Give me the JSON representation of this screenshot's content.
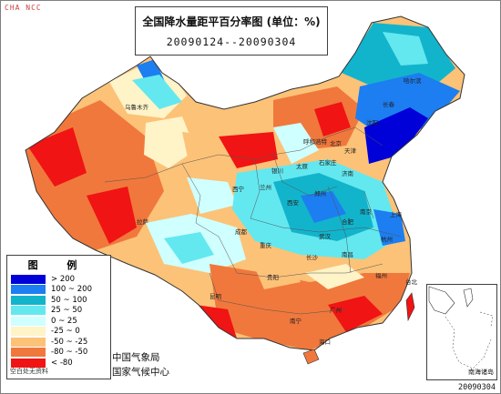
{
  "watermark": "CHA NCC",
  "title": "全国降水量距平百分率图 (单位：%)",
  "period": "20090124--20090304",
  "legend": {
    "title": "图 例",
    "items": [
      {
        "range": "> 200",
        "color": "#0000d8"
      },
      {
        "range": "100 ~ 200",
        "color": "#1c7ef0"
      },
      {
        "range": "50 ~ 100",
        "color": "#12b4cc"
      },
      {
        "range": "25 ~ 50",
        "color": "#63e8f0"
      },
      {
        "range": "0 ~ 25",
        "color": "#cfffff"
      },
      {
        "range": "-25 ~ 0",
        "color": "#fff3c8"
      },
      {
        "range": "-50 ~ -25",
        "color": "#fcc278"
      },
      {
        "range": "-80 ~ -50",
        "color": "#f0783c"
      },
      {
        "range": "< -80",
        "color": "#f01414"
      }
    ],
    "note": "空白处无资料"
  },
  "organizations": [
    "中国气象局",
    "国家气候中心"
  ],
  "footer_date": "20090304",
  "inset_label": "南海诸岛",
  "cities": [
    "乌鲁木齐",
    "哈尔滨",
    "长春",
    "沈阳",
    "呼和浩特",
    "北京",
    "天津",
    "石家庄",
    "太原",
    "银川",
    "兰州",
    "西宁",
    "济南",
    "郑州",
    "西安",
    "南京",
    "上海",
    "合肥",
    "武汉",
    "成都",
    "重庆",
    "杭州",
    "长沙",
    "南昌",
    "福州",
    "台北",
    "贵阳",
    "昆明",
    "拉萨",
    "南宁",
    "广州",
    "海口"
  ]
}
